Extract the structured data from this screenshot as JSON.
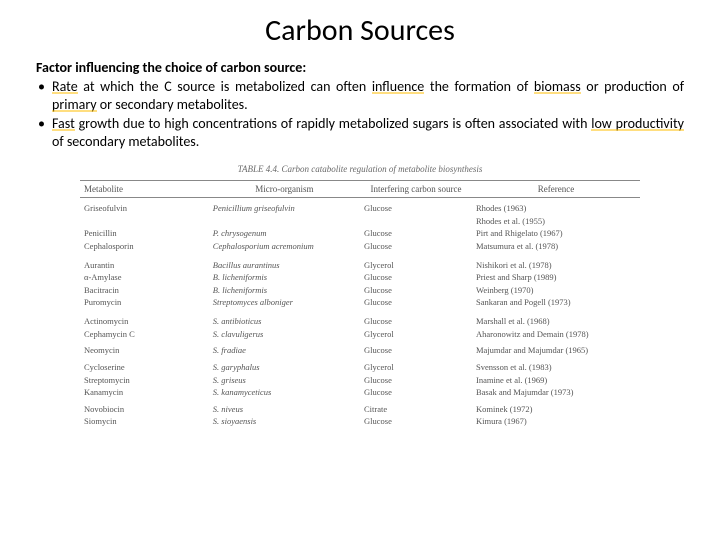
{
  "title": "Carbon Sources",
  "subhead": "Factor influencing the choice of carbon source:",
  "bullets": {
    "b1": {
      "w1": "Rate",
      "t1": " at which the C source is metabolized can often ",
      "w2": "influence",
      "t2": " the formation of ",
      "w3": "biomass",
      "t3": " or production of ",
      "w4": "primary",
      "t4": " or secondary metabolites."
    },
    "b2": {
      "w1": "Fast",
      "t1": " growth due to high concentrations of rapidly metabolized sugars is often associated with ",
      "w2": "low productivity",
      "t2": " of secondary metabolites."
    }
  },
  "table": {
    "caption": "TABLE 4.4. Carbon catabolite regulation of metabolite biosynthesis",
    "headers": {
      "h1": "Metabolite",
      "h2": "Micro-organism",
      "h3": "Interfering carbon source",
      "h4": "Reference"
    },
    "rows": {
      "r0": {
        "c1": "Griseofulvin",
        "c2": "Penicillium griseofulvin",
        "c3": "Glucose",
        "c4": "Rhodes (1963)"
      },
      "r0b": {
        "c1": "",
        "c2": "",
        "c3": "",
        "c4": "Rhodes et al. (1955)"
      },
      "r1": {
        "c1": "Penicillin",
        "c2": "P. chrysogenum",
        "c3": "Glucose",
        "c4": "Pirt and Rhigelato (1967)"
      },
      "r2": {
        "c1": "Cephalosporin",
        "c2": "Cephalosporium acremonium",
        "c3": "Glucose",
        "c4": "Matsumura et al. (1978)"
      },
      "r3": {
        "c1": "Aurantin",
        "c2": "Bacillus aurantinus",
        "c3": "Glycerol",
        "c4": "Nishikori et al. (1978)"
      },
      "r4": {
        "c1": "α-Amylase",
        "c2": "B. licheniformis",
        "c3": "Glucose",
        "c4": "Priest and Sharp (1989)"
      },
      "r5": {
        "c1": "Bacitracin",
        "c2": "B. licheniformis",
        "c3": "Glucose",
        "c4": "Weinberg (1970)"
      },
      "r6": {
        "c1": "Puromycin",
        "c2": "Streptomyces alboniger",
        "c3": "Glucose",
        "c4": "Sankaran and Pogell (1973)"
      },
      "r7": {
        "c1": "Actinomycin",
        "c2": "S. antibioticus",
        "c3": "Glucose",
        "c4": "Marshall et al. (1968)"
      },
      "r8": {
        "c1": "Cephamycin C",
        "c2": "S. clavuligerus",
        "c3": "Glycerol",
        "c4": "Aharonowitz and Demain (1978)"
      },
      "r9": {
        "c1": "Neomycin",
        "c2": "S. fradiae",
        "c3": "Glucose",
        "c4": "Majumdar and Majumdar (1965)"
      },
      "r10": {
        "c1": "Cycloserine",
        "c2": "S. garyphalus",
        "c3": "Glycerol",
        "c4": "Svensson et al. (1983)"
      },
      "r11": {
        "c1": "Streptomycin",
        "c2": "S. griseus",
        "c3": "Glucose",
        "c4": "Inamine et al. (1969)"
      },
      "r12": {
        "c1": "Kanamycin",
        "c2": "S. kanamyceticus",
        "c3": "Glucose",
        "c4": "Basak and Majumdar (1973)"
      },
      "r13": {
        "c1": "Novobiocin",
        "c2": "S. niveus",
        "c3": "Citrate",
        "c4": "Kominek (1972)"
      },
      "r14": {
        "c1": "Siomycin",
        "c2": "S. sioyaensis",
        "c3": "Glucose",
        "c4": "Kimura (1967)"
      }
    }
  }
}
